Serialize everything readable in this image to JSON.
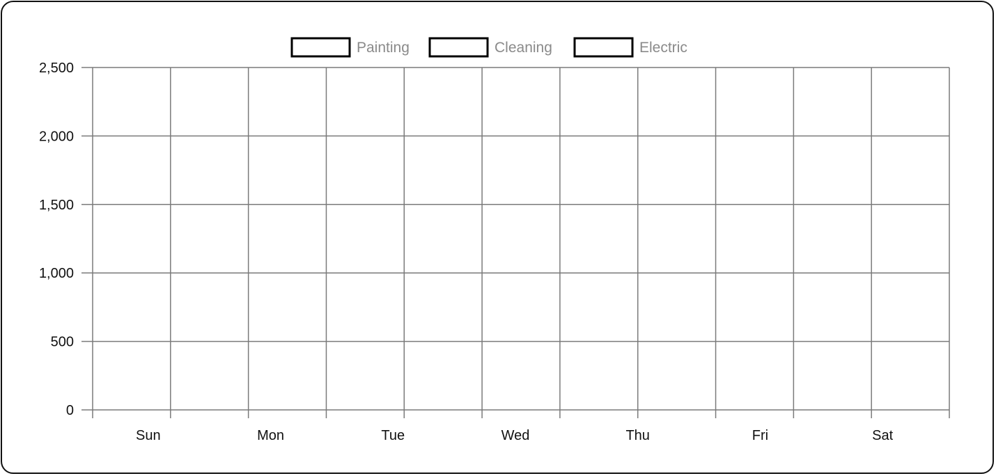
{
  "chart_data": {
    "type": "bar",
    "title": "",
    "xlabel": "",
    "ylabel": "",
    "categories": [
      "Sun",
      "Mon",
      "Tue",
      "Wed",
      "Thu",
      "Fri",
      "Sat"
    ],
    "series": [
      {
        "name": "Painting",
        "values": [
          0,
          0,
          0,
          0,
          0,
          0,
          0
        ],
        "color": "#000000"
      },
      {
        "name": "Cleaning",
        "values": [
          0,
          0,
          0,
          0,
          0,
          0,
          0
        ],
        "color": "#000000"
      },
      {
        "name": "Electric",
        "values": [
          0,
          0,
          0,
          0,
          0,
          0,
          0
        ],
        "color": "#000000"
      }
    ],
    "ylim": [
      0,
      2500
    ],
    "yticks": [
      0,
      500,
      1000,
      1500,
      2000,
      2500
    ],
    "ytick_labels": [
      "0",
      "500",
      "1,000",
      "1,500",
      "2,000",
      "2,500"
    ],
    "grid": true,
    "legend": "top-center"
  },
  "colors": {
    "grid": "#7a7a7a",
    "legend_text": "#8a8a8a",
    "legend_box_border": "#000000"
  }
}
